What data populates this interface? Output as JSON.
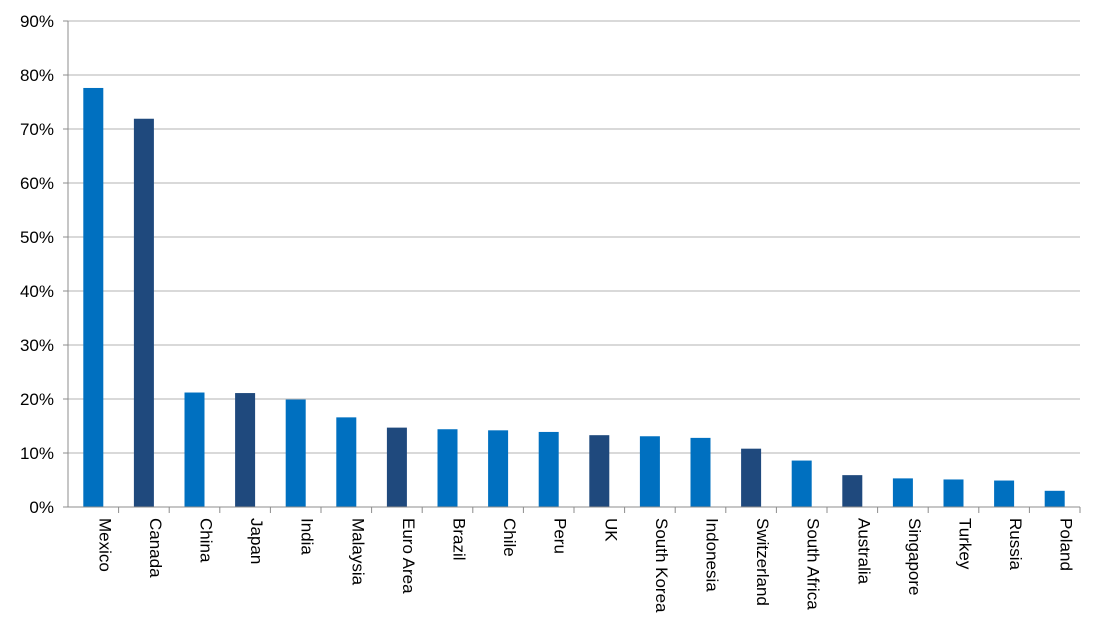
{
  "chart_data": {
    "type": "bar",
    "categories": [
      "Mexico",
      "Canada",
      "China",
      "Japan",
      "India",
      "Malaysia",
      "Euro Area",
      "Brazil",
      "Chile",
      "Peru",
      "UK",
      "South Korea",
      "Indonesia",
      "Switzerland",
      "South Africa",
      "Australia",
      "Singapore",
      "Turkey",
      "Russia",
      "Poland"
    ],
    "values": [
      77.6,
      71.9,
      21.2,
      21.1,
      19.9,
      16.6,
      14.7,
      14.4,
      14.2,
      13.9,
      13.3,
      13.1,
      12.8,
      10.8,
      8.6,
      5.9,
      5.3,
      5.1,
      4.9,
      3.0
    ],
    "bar_colors": [
      "#0070c0",
      "#1f497d",
      "#0070c0",
      "#1f497d",
      "#0070c0",
      "#0070c0",
      "#1f497d",
      "#0070c0",
      "#0070c0",
      "#0070c0",
      "#1f497d",
      "#0070c0",
      "#0070c0",
      "#1f497d",
      "#0070c0",
      "#1f497d",
      "#0070c0",
      "#0070c0",
      "#0070c0",
      "#0070c0"
    ],
    "y_ticks": [
      "0%",
      "10%",
      "20%",
      "30%",
      "40%",
      "50%",
      "60%",
      "70%",
      "80%",
      "90%"
    ],
    "ylim": [
      0,
      90
    ],
    "y_unit": "%",
    "grid": true,
    "legend": "none"
  }
}
